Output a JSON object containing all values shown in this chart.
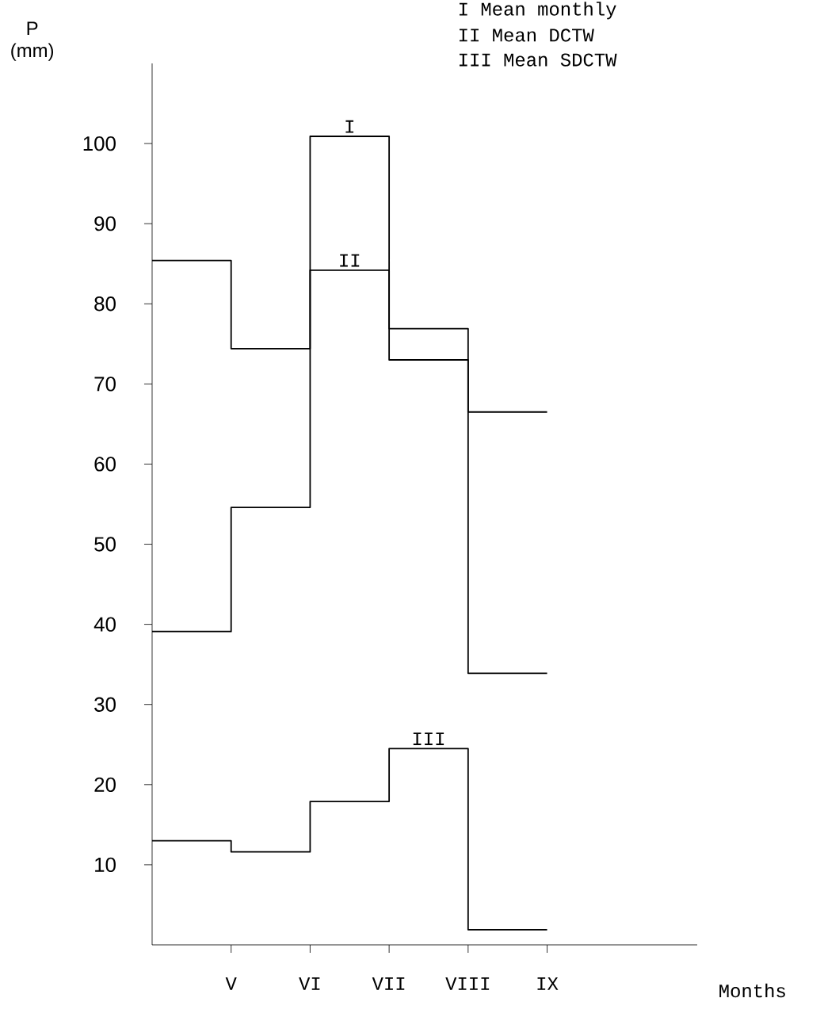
{
  "chart_data": {
    "type": "step",
    "ylabel": "P (mm)",
    "categories": [
      null,
      "V",
      "VI",
      "VII",
      "VIII",
      "IX"
    ],
    "series": [
      {
        "color": "#000000",
        "values": [
          85.4,
          74.4,
          100.9,
          76.9,
          66.5,
          66.5
        ]
      },
      {
        "color": "#000000",
        "values": [
          39.1,
          54.6,
          84.2,
          73.0,
          33.9,
          33.9
        ]
      },
      {
        "color": "#000000",
        "values": [
          13.0,
          11.6,
          17.9,
          24.5,
          1.9,
          1.9
        ]
      }
    ],
    "ylim": [
      0,
      110
    ],
    "yticks": [
      10,
      20,
      30,
      40,
      50,
      60,
      70,
      80,
      90,
      100
    ],
    "annotations": [
      "I",
      "II",
      "III",
      "I Mean monthly",
      "II Mean DCTW",
      "III Mean SDCTW",
      "Months"
    ],
    "grid": false
  }
}
